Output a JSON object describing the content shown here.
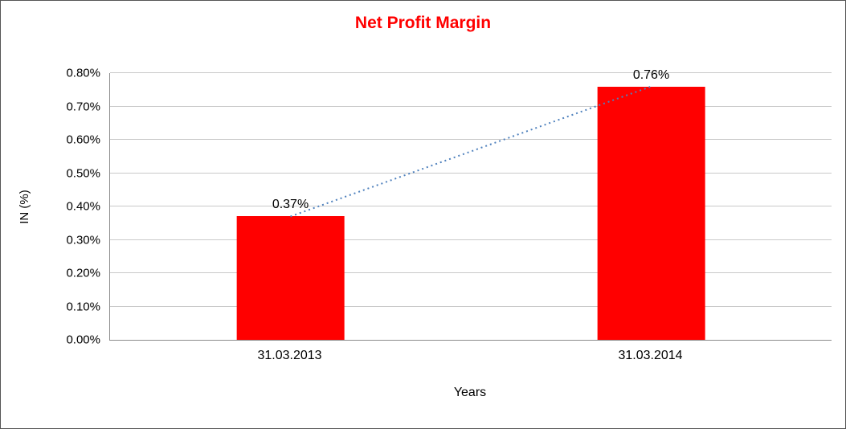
{
  "chart_data": {
    "type": "bar",
    "title": "Net Profit Margin",
    "title_color": "#FF0000",
    "xlabel": "Years",
    "ylabel": "IN (%)",
    "categories": [
      "31.03.2013",
      "31.03.2014"
    ],
    "values": [
      0.37,
      0.76
    ],
    "value_labels": [
      "0.37%",
      "0.76%"
    ],
    "ylim": [
      0,
      0.8
    ],
    "ytick_step": 0.1,
    "ytick_labels": [
      "0.00%",
      "0.10%",
      "0.20%",
      "0.30%",
      "0.40%",
      "0.50%",
      "0.60%",
      "0.70%",
      "0.80%"
    ],
    "bar_color": "#FF0000",
    "grid": true,
    "legend_position": "none",
    "trendline": {
      "type": "linear",
      "style": "dotted",
      "color": "#4F81BD"
    }
  }
}
